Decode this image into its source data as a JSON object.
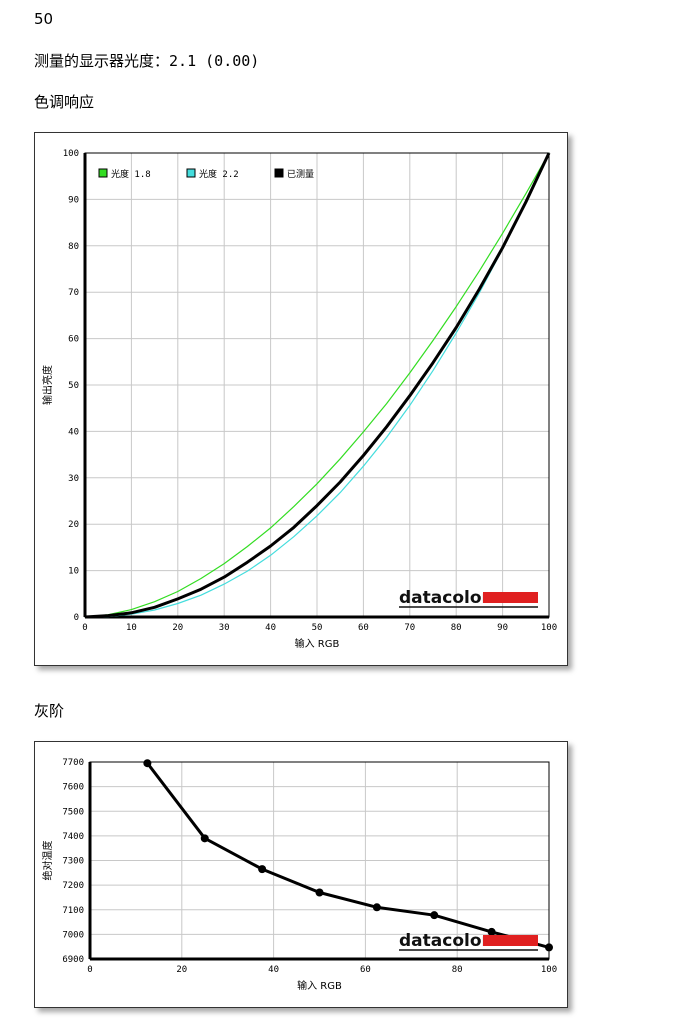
{
  "page_number": "50",
  "gamma_line": {
    "label": "测量的显示器光度：",
    "value": "2.1 (0.00)"
  },
  "sections": {
    "tone_response": "色调响应",
    "grayscale": "灰阶"
  },
  "logo_text": "datacolor",
  "colors": {
    "gamma18": "#33dd22",
    "gamma22": "#44dddd",
    "measured": "#000000",
    "logo_bar": "#e02020",
    "grid": "#c8c8c8"
  },
  "chart_data": [
    {
      "type": "line",
      "xlabel": "输入 RGB",
      "ylabel": "输出亮度",
      "xlim": [
        0,
        100
      ],
      "ylim": [
        0,
        100
      ],
      "xticks": [
        0,
        10,
        20,
        30,
        40,
        50,
        60,
        70,
        80,
        90,
        100
      ],
      "yticks": [
        0,
        10,
        20,
        30,
        40,
        50,
        60,
        70,
        80,
        90,
        100
      ],
      "grid": true,
      "legend_position": "top-left",
      "series": [
        {
          "name": "光度 1.8",
          "color": "#33dd22",
          "x": [
            0,
            5,
            10,
            15,
            20,
            25,
            30,
            35,
            40,
            45,
            50,
            55,
            60,
            65,
            70,
            75,
            80,
            85,
            90,
            95,
            100
          ],
          "y": [
            0,
            0.5,
            1.6,
            3.3,
            5.5,
            8.3,
            11.5,
            15.2,
            19.2,
            23.8,
            28.7,
            34.1,
            39.9,
            46.0,
            52.6,
            59.6,
            66.9,
            74.6,
            82.7,
            91.2,
            100
          ]
        },
        {
          "name": "光度 2.2",
          "color": "#44dddd",
          "x": [
            0,
            5,
            10,
            15,
            20,
            25,
            30,
            35,
            40,
            45,
            50,
            55,
            60,
            65,
            70,
            75,
            80,
            85,
            90,
            95,
            100
          ],
          "y": [
            0,
            0.1,
            0.6,
            1.5,
            2.9,
            4.7,
            7.1,
            9.9,
            13.3,
            17.3,
            21.8,
            26.8,
            32.5,
            38.7,
            45.6,
            53.1,
            61.2,
            69.9,
            79.3,
            89.3,
            100
          ]
        },
        {
          "name": "已测量",
          "color": "#000000",
          "x": [
            0,
            5,
            10,
            15,
            20,
            25,
            30,
            35,
            40,
            45,
            50,
            55,
            60,
            65,
            70,
            75,
            80,
            85,
            90,
            95,
            100
          ],
          "y": [
            0,
            0.3,
            0.9,
            2.1,
            3.9,
            6.0,
            8.6,
            11.8,
            15.3,
            19.3,
            24.0,
            29.1,
            34.8,
            41.0,
            47.7,
            54.8,
            62.4,
            70.7,
            79.6,
            89.4,
            100
          ]
        }
      ]
    },
    {
      "type": "line",
      "xlabel": "输入 RGB",
      "ylabel": "绝对温度",
      "xlim": [
        0,
        100
      ],
      "ylim": [
        6900,
        7700
      ],
      "xticks": [
        0,
        20,
        40,
        60,
        80,
        100
      ],
      "yticks": [
        6900,
        7000,
        7100,
        7200,
        7300,
        7400,
        7500,
        7600,
        7700
      ],
      "grid": true,
      "series": [
        {
          "name": "",
          "color": "#000000",
          "x": [
            12.5,
            25,
            37.5,
            50,
            62.5,
            75,
            87.5,
            100
          ],
          "y": [
            7695,
            7390,
            7265,
            7170,
            7110,
            7078,
            7010,
            6947
          ]
        }
      ]
    }
  ]
}
